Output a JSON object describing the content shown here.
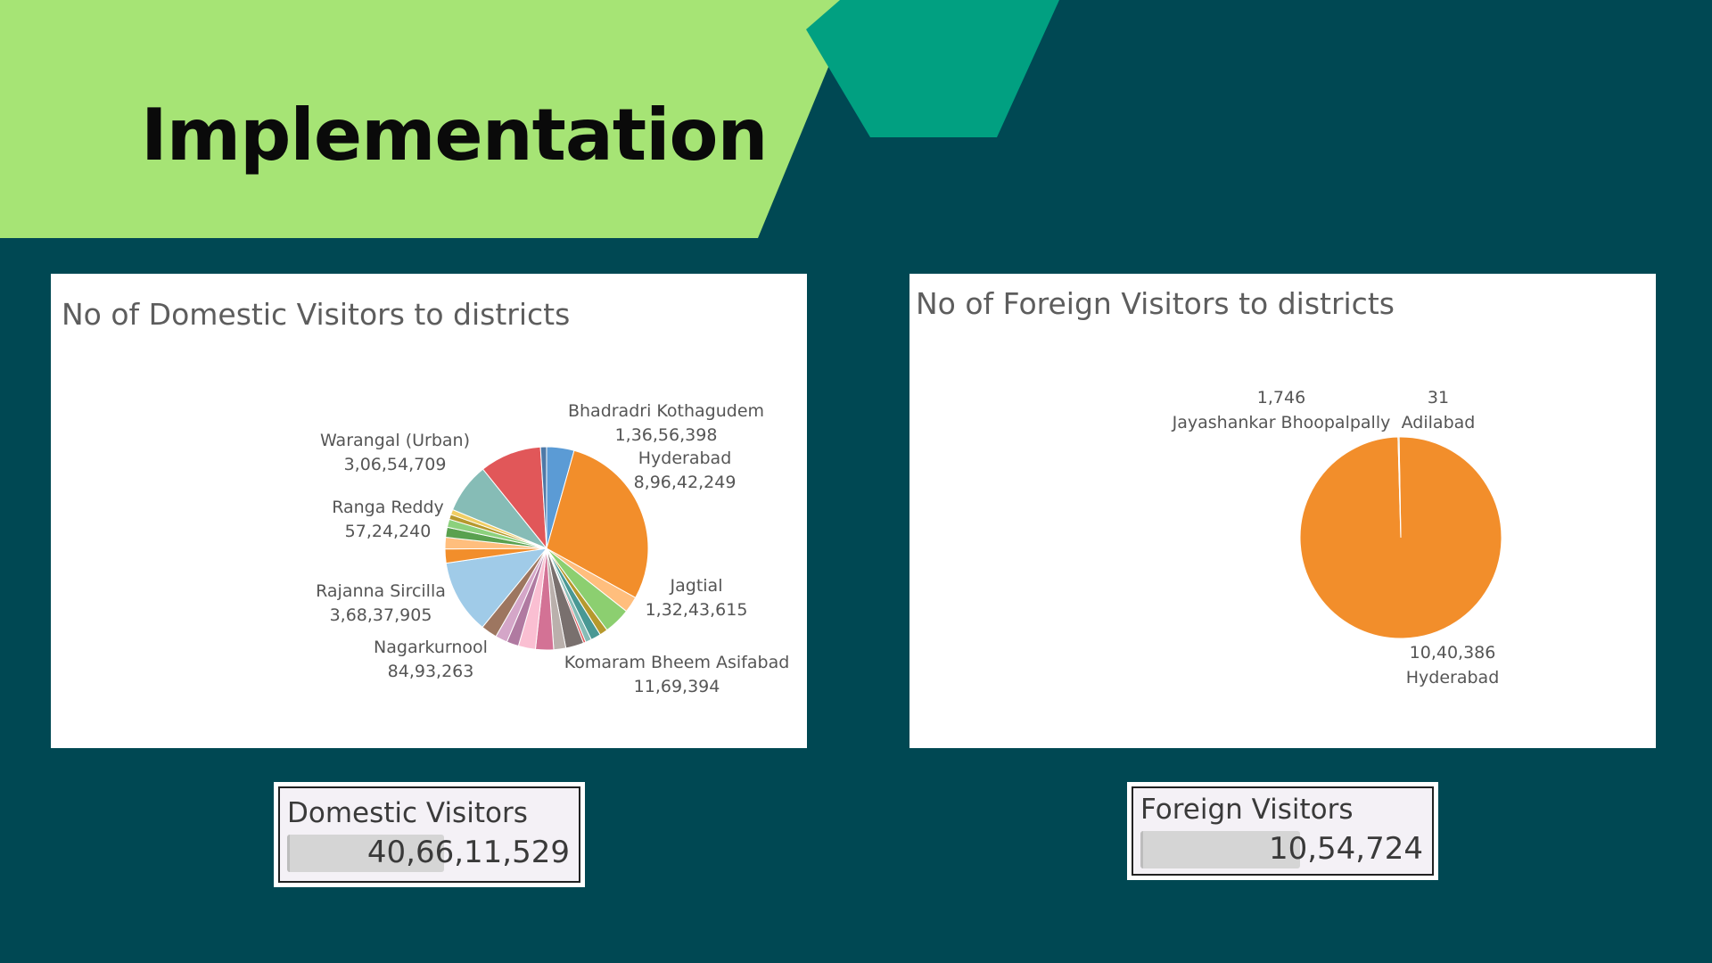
{
  "slide": {
    "title": "Implementation"
  },
  "colors": {
    "background": "#004853",
    "title_band": "#a6e475",
    "hexagon": "#01a081"
  },
  "chart_data": [
    {
      "type": "pie",
      "title": "No of Domestic Visitors to districts",
      "slices": [
        {
          "label": "Bhadradri Kothagudem",
          "value": 13656398,
          "color": "#5b9bd5"
        },
        {
          "label": "Hyderabad",
          "value": 89642249,
          "color": "#f28e2b"
        },
        {
          "label": "",
          "value": 8000000,
          "color": "#ffbe7d"
        },
        {
          "label": "Jagtial",
          "value": 13243615,
          "color": "#8ccf70"
        },
        {
          "label": "",
          "value": 4000000,
          "color": "#b6992d"
        },
        {
          "label": "",
          "value": 5000000,
          "color": "#499894"
        },
        {
          "label": "",
          "value": 3000000,
          "color": "#86bcb6"
        },
        {
          "label": "Komaram Bheem Asifabad",
          "value": 1169394,
          "color": "#e15759"
        },
        {
          "label": "",
          "value": 9000000,
          "color": "#79706e"
        },
        {
          "label": "",
          "value": 6000000,
          "color": "#bab0ac"
        },
        {
          "label": "",
          "value": 9000000,
          "color": "#d37295"
        },
        {
          "label": "Nagarkurnool",
          "value": 8493263,
          "color": "#fabfd2"
        },
        {
          "label": "",
          "value": 6000000,
          "color": "#b07aa1"
        },
        {
          "label": "",
          "value": 6000000,
          "color": "#d4a6c8"
        },
        {
          "label": "",
          "value": 8000000,
          "color": "#9d7660"
        },
        {
          "label": "Rajanna Sircilla",
          "value": 36837905,
          "color": "#a0cbe8"
        },
        {
          "label": "",
          "value": 7000000,
          "color": "#f28e2b"
        },
        {
          "label": "Ranga Reddy",
          "value": 5724240,
          "color": "#ffbe7d"
        },
        {
          "label": "",
          "value": 5000000,
          "color": "#59a14f"
        },
        {
          "label": "",
          "value": 4000000,
          "color": "#8cd17d"
        },
        {
          "label": "",
          "value": 2500000,
          "color": "#b6992d"
        },
        {
          "label": "",
          "value": 2500000,
          "color": "#f1ce63"
        },
        {
          "label": "",
          "value": 25000000,
          "color": "#86bcb6"
        },
        {
          "label": "Warangal (Urban)",
          "value": 30654709,
          "color": "#e15759"
        },
        {
          "label": "",
          "value": 3000000,
          "color": "#4e79a7"
        }
      ],
      "labels": [
        {
          "name": "Bhadradri Kothagudem",
          "value_text": "1,36,56,398"
        },
        {
          "name": "Hyderabad",
          "value_text": "8,96,42,249"
        },
        {
          "name": "Warangal (Urban)",
          "value_text": "3,06,54,709"
        },
        {
          "name": "Ranga Reddy",
          "value_text": "57,24,240"
        },
        {
          "name": "Rajanna Sircilla",
          "value_text": "3,68,37,905"
        },
        {
          "name": "Jagtial",
          "value_text": "1,32,43,615"
        },
        {
          "name": "Nagarkurnool",
          "value_text": "84,93,263"
        },
        {
          "name": "Komaram Bheem Asifabad",
          "value_text": "11,69,394"
        }
      ]
    },
    {
      "type": "pie",
      "title": "No of Foreign Visitors to districts",
      "slices": [
        {
          "label": "Adilabad",
          "value": 31,
          "color": "#4e79a7"
        },
        {
          "label": "Hyderabad",
          "value": 1040386,
          "color": "#f28e2b"
        },
        {
          "label": "Jayashankar Bhoopalpally",
          "value": 1746,
          "color": "#8cc2b0"
        }
      ],
      "labels": [
        {
          "name": "Jayashankar Bhoopalpally",
          "value_text": "1,746"
        },
        {
          "name": "Adilabad",
          "value_text": "31"
        },
        {
          "name": "Hyderabad",
          "value_text": "10,40,386"
        }
      ]
    }
  ],
  "kpis": [
    {
      "label": "Domestic Visitors",
      "value": "40,66,11,529",
      "bar_fraction": 0.54
    },
    {
      "label": "Foreign Visitors",
      "value": "10,54,724",
      "bar_fraction": 0.55
    }
  ]
}
